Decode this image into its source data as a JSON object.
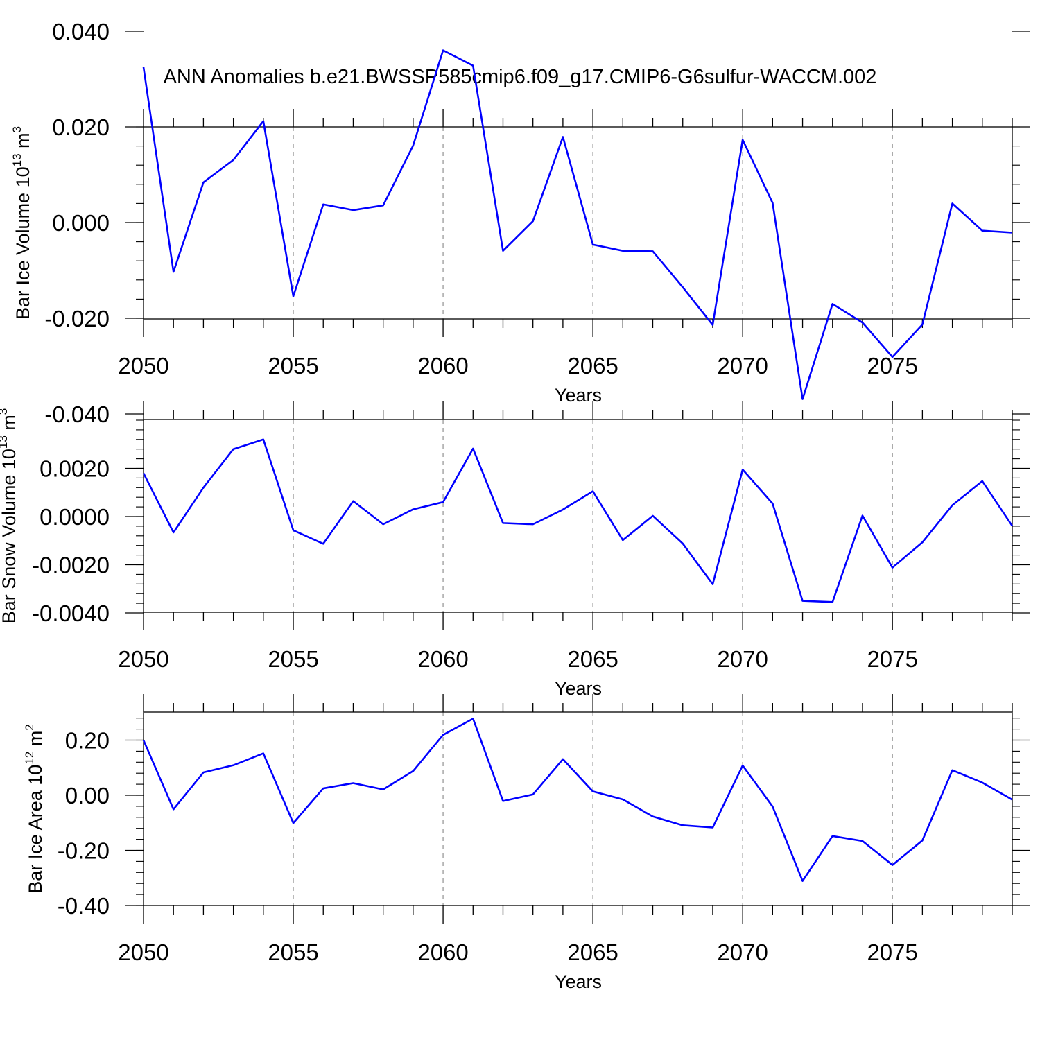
{
  "title": "ANN Anomalies b.e21.BWSSP585cmip6.f09_g17.CMIP6-G6sulfur-WACCM.002",
  "colors": {
    "line": "#0000ff",
    "frame": "#000000",
    "grid": "#999999"
  },
  "chart_data": [
    {
      "type": "line",
      "ylabel": "Bar Ice Volume 10",
      "ylabel_exp": "13",
      "ylabel_unit": "m",
      "ylabel_unit_exp": "3",
      "xlabel": "Years",
      "xlim": [
        2050,
        2079
      ],
      "ylim": [
        -0.04,
        0.04
      ],
      "x_ticks": [
        2050,
        2055,
        2060,
        2065,
        2070,
        2075
      ],
      "x_tick_labels": [
        "2050",
        "2055",
        "2060",
        "2065",
        "2070",
        "2075"
      ],
      "y_ticks": [
        0.04,
        0.02,
        0.0,
        -0.02,
        -0.04
      ],
      "y_tick_labels": [
        "0.040",
        "0.020",
        "0.000",
        "-0.020",
        "-0.040"
      ],
      "grid": "vertical dashed at major x ticks",
      "series": [
        {
          "x": [
            2050,
            2051,
            2052,
            2053,
            2054,
            2055,
            2056,
            2057,
            2058,
            2059,
            2060,
            2061,
            2062,
            2063,
            2064,
            2065,
            2066,
            2067,
            2068,
            2069,
            2070,
            2071,
            2072,
            2073,
            2074,
            2075,
            2076,
            2077,
            2078,
            2079
          ],
          "values": [
            0.0325,
            -0.0103,
            0.0084,
            0.0131,
            0.0212,
            -0.0154,
            0.0038,
            0.0026,
            0.0036,
            0.0161,
            0.036,
            0.0328,
            -0.0059,
            0.0003,
            0.0179,
            -0.0046,
            -0.0059,
            -0.006,
            -0.0135,
            -0.0214,
            0.0173,
            0.0041,
            -0.0369,
            -0.017,
            -0.0209,
            -0.0281,
            -0.0213,
            0.004,
            -0.0017,
            -0.0021
          ]
        }
      ]
    },
    {
      "type": "line",
      "ylabel": "Bar Snow Volume 10",
      "ylabel_exp": "13",
      "ylabel_unit": "m",
      "ylabel_unit_exp": "3",
      "xlabel": "Years",
      "xlim": [
        2050,
        2079
      ],
      "ylim": [
        -0.004,
        0.004
      ],
      "x_ticks": [
        2050,
        2055,
        2060,
        2065,
        2070,
        2075
      ],
      "x_tick_labels": [
        "2050",
        "2055",
        "2060",
        "2065",
        "2070",
        "2075"
      ],
      "y_ticks": [
        0.002,
        0.0,
        -0.002,
        -0.004
      ],
      "y_tick_labels": [
        "0.0020",
        "0.0000",
        "-0.0020",
        "-0.0040"
      ],
      "grid": "vertical dashed at major x ticks",
      "series": [
        {
          "x": [
            2050,
            2051,
            2052,
            2053,
            2054,
            2055,
            2056,
            2057,
            2058,
            2059,
            2060,
            2061,
            2062,
            2063,
            2064,
            2065,
            2066,
            2067,
            2068,
            2069,
            2070,
            2071,
            2072,
            2073,
            2074,
            2075,
            2076,
            2077,
            2078,
            2079
          ],
          "values": [
            0.0018,
            -0.00066,
            0.0012,
            0.0028,
            0.0032,
            -0.00057,
            -0.00113,
            0.00064,
            -0.00032,
            0.0003,
            0.0006,
            0.00282,
            -0.00027,
            -0.00032,
            0.00029,
            0.00105,
            -0.00098,
            3e-05,
            -0.00112,
            -0.00281,
            0.00195,
            0.00054,
            -0.0035,
            -0.00355,
            4e-05,
            -0.00212,
            -0.00107,
            0.00047,
            0.00147,
            -0.00039
          ]
        }
      ]
    },
    {
      "type": "line",
      "ylabel": "Bar Ice Area 10",
      "ylabel_exp": "12",
      "ylabel_unit": "m",
      "ylabel_unit_exp": "2",
      "xlabel": "Years",
      "xlim": [
        2050,
        2079
      ],
      "ylim": [
        -0.4,
        0.3
      ],
      "x_ticks": [
        2050,
        2055,
        2060,
        2065,
        2070,
        2075
      ],
      "x_tick_labels": [
        "2050",
        "2055",
        "2060",
        "2065",
        "2070",
        "2075"
      ],
      "y_ticks": [
        0.2,
        0.0,
        -0.2,
        -0.4
      ],
      "y_tick_labels": [
        "0.20",
        "0.00",
        "-0.20",
        "-0.40"
      ],
      "grid": "vertical dashed at major x ticks",
      "series": [
        {
          "x": [
            2050,
            2051,
            2052,
            2053,
            2054,
            2055,
            2056,
            2057,
            2058,
            2059,
            2060,
            2061,
            2062,
            2063,
            2064,
            2065,
            2066,
            2067,
            2068,
            2069,
            2070,
            2071,
            2072,
            2073,
            2074,
            2075,
            2076,
            2077,
            2078,
            2079
          ],
          "values": [
            0.2,
            -0.051,
            0.083,
            0.109,
            0.152,
            -0.101,
            0.025,
            0.044,
            0.021,
            0.088,
            0.219,
            0.278,
            -0.021,
            0.003,
            0.131,
            0.014,
            -0.015,
            -0.077,
            -0.109,
            -0.117,
            0.108,
            -0.041,
            -0.311,
            -0.148,
            -0.166,
            -0.253,
            -0.164,
            0.091,
            0.046,
            -0.016
          ]
        }
      ]
    }
  ]
}
